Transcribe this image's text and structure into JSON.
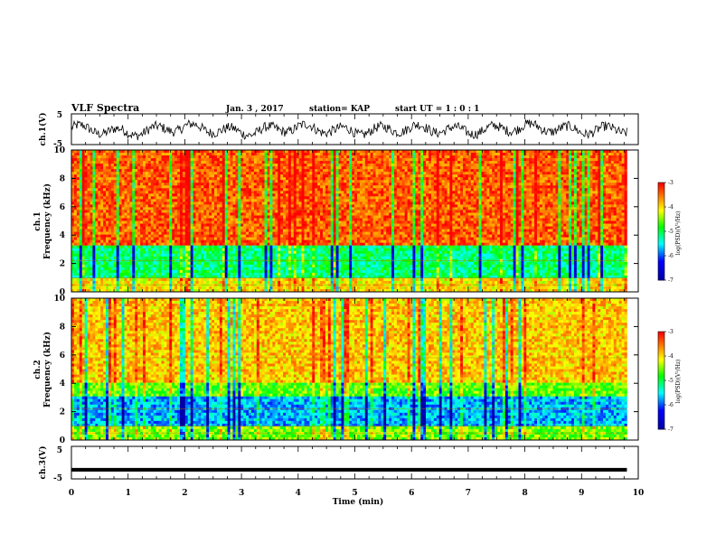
{
  "header": {
    "title": "VLF Spectra",
    "date": "Jan. 3 , 2017",
    "station": "station= KAP",
    "start": "start UT = 1 : 0 : 1"
  },
  "colors": {
    "spectrogram_high": "#ff2200",
    "spectrogram_mid": "#ffff00",
    "spectrogram_low": "#00ffff",
    "spectrogram_min": "#0000ff",
    "trace": "#000000"
  },
  "chart_data": [
    {
      "type": "line",
      "panel": "ch1",
      "ylabel": "ch.1(V)",
      "ylim": [
        -5,
        5
      ],
      "yticks": [
        "5",
        "-5"
      ],
      "x": [
        0,
        1,
        2,
        3,
        4,
        5,
        6,
        7,
        8,
        9,
        9.8
      ],
      "values": [
        0.5,
        -1.2,
        0.8,
        -1.0,
        0.6,
        -0.8,
        0.4,
        -0.6,
        0.8,
        -0.5,
        0.0
      ]
    },
    {
      "type": "heatmap",
      "panel": "ch1_spectrogram",
      "ylabel": "ch.1",
      "ylabel2": "Frequency (kHz)",
      "ylim": [
        0,
        10
      ],
      "yticks": [
        "10",
        "8",
        "6",
        "4",
        "2",
        "0"
      ],
      "colorbar": {
        "label": "log(PSD)(V²/Hz)",
        "ticks": [
          "-3",
          "-4",
          "-5",
          "-6",
          "-7"
        ],
        "range": [
          -7,
          -3
        ]
      },
      "dominant": "red above 3 kHz, cyan/green band 1-3 kHz"
    },
    {
      "type": "heatmap",
      "panel": "ch2_spectrogram",
      "ylabel": "ch.2",
      "ylabel2": "Frequency (kHz)",
      "ylim": [
        0,
        10
      ],
      "yticks": [
        "10",
        "8",
        "6",
        "4",
        "2",
        "0"
      ],
      "colorbar": {
        "label": "log(PSD)(V²/Hz)",
        "ticks": [
          "-3",
          "-4",
          "-5",
          "-6",
          "-7"
        ],
        "range": [
          -7,
          -3
        ]
      },
      "dominant": "yellow/red above 3 kHz, cyan/blue band 1-3 kHz"
    },
    {
      "type": "line",
      "panel": "ch3",
      "ylabel": "ch.3(V)",
      "ylim": [
        -5,
        5
      ],
      "yticks": [
        "5",
        "-5"
      ],
      "x": [
        0,
        9.8
      ],
      "values": [
        -2.2,
        -2.2
      ]
    }
  ],
  "xaxis": {
    "label": "Time (min)",
    "xlim": [
      0,
      10
    ],
    "ticks": [
      "0",
      "1",
      "2",
      "3",
      "4",
      "5",
      "6",
      "7",
      "8",
      "9",
      "10"
    ]
  }
}
